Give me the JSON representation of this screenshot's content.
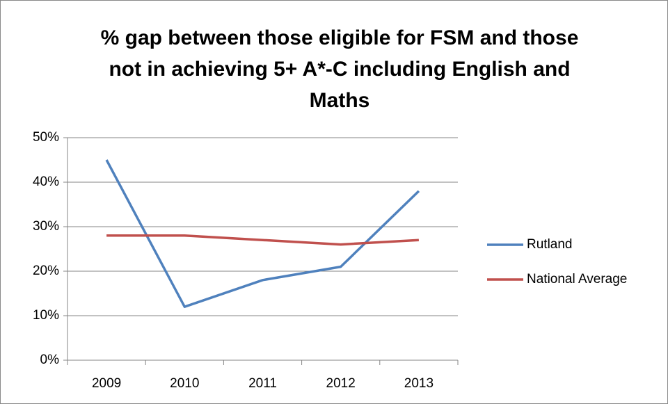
{
  "chart_data": {
    "type": "line",
    "title": "% gap between those eligible for FSM and those not in achieving 5+ A*-C including English and Maths",
    "categories": [
      "2009",
      "2010",
      "2011",
      "2012",
      "2013"
    ],
    "series": [
      {
        "name": "Rutland",
        "color": "#4f81bd",
        "values": [
          45,
          12,
          18,
          21,
          38
        ]
      },
      {
        "name": "National Average",
        "color": "#c0504d",
        "values": [
          28,
          28,
          27,
          26,
          27
        ]
      }
    ],
    "ylim": [
      0,
      50
    ],
    "yticks": [
      {
        "value": 0,
        "label": "0%"
      },
      {
        "value": 10,
        "label": "10%"
      },
      {
        "value": 20,
        "label": "20%"
      },
      {
        "value": 30,
        "label": "30%"
      },
      {
        "value": 40,
        "label": "40%"
      },
      {
        "value": 50,
        "label": "50%"
      }
    ],
    "grid": true,
    "legend": "right"
  }
}
